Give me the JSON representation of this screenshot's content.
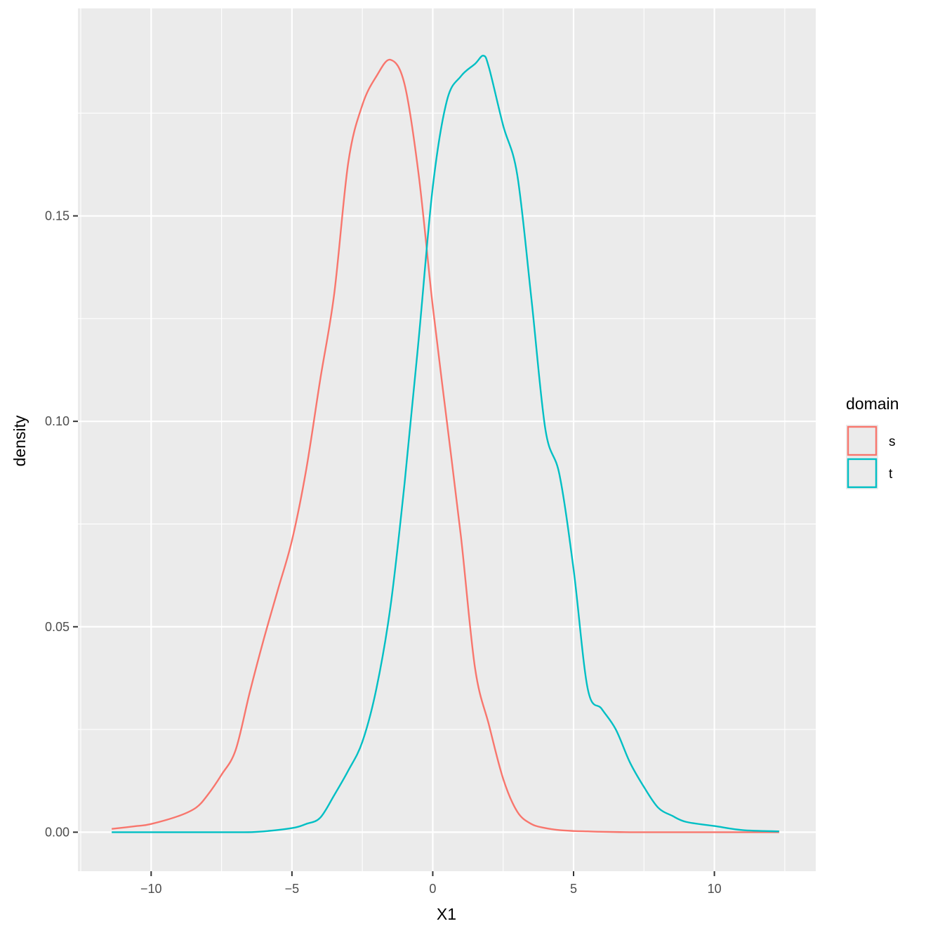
{
  "chart_data": {
    "type": "line",
    "title": "",
    "xlabel": "X1",
    "ylabel": "density",
    "xlim": [
      -12.6,
      13.6
    ],
    "ylim": [
      -0.0095,
      0.2005
    ],
    "x_ticks": [
      -10,
      -5,
      0,
      5,
      10
    ],
    "x_tick_labels": [
      "−10",
      "−5",
      "0",
      "5",
      "10"
    ],
    "y_ticks": [
      0.0,
      0.05,
      0.1,
      0.15
    ],
    "y_tick_labels": [
      "0.00",
      "0.05",
      "0.10",
      "0.15"
    ],
    "grid": true,
    "legend": {
      "title": "domain",
      "position": "right"
    },
    "series": [
      {
        "name": "s",
        "color": "#F8766D",
        "x": [
          -11.4,
          -10.5,
          -10,
          -9,
          -8.4,
          -8,
          -7.5,
          -7,
          -6.5,
          -6,
          -5.5,
          -5,
          -4.5,
          -4,
          -3.5,
          -3,
          -2.5,
          -2,
          -1.5,
          -1,
          -0.5,
          0,
          0.5,
          1,
          1.5,
          2,
          2.5,
          3,
          3.5,
          4,
          4.5,
          5,
          5.5,
          6,
          7,
          8,
          9,
          10,
          11,
          12.3
        ],
        "y": [
          0.0008,
          0.0015,
          0.002,
          0.004,
          0.006,
          0.009,
          0.014,
          0.02,
          0.034,
          0.047,
          0.059,
          0.071,
          0.088,
          0.11,
          0.131,
          0.163,
          0.177,
          0.184,
          0.188,
          0.182,
          0.16,
          0.128,
          0.1,
          0.072,
          0.04,
          0.026,
          0.013,
          0.005,
          0.002,
          0.001,
          0.0005,
          0.0003,
          0.0002,
          0.0001,
          0.0,
          0.0,
          0.0,
          0.0,
          0.0,
          0.0
        ]
      },
      {
        "name": "t",
        "color": "#00BFC4",
        "x": [
          -11.4,
          -10,
          -9,
          -8,
          -7,
          -6.2,
          -5,
          -4.5,
          -4,
          -3.5,
          -3,
          -2.5,
          -2,
          -1.5,
          -1,
          -0.5,
          0,
          0.5,
          1,
          1.5,
          1.8,
          2,
          2.5,
          3,
          3.5,
          4,
          4.5,
          5,
          5.5,
          6,
          6.5,
          7,
          7.5,
          8,
          8.5,
          9,
          10,
          11,
          12.3
        ],
        "y": [
          0.0,
          0.0,
          0.0,
          0.0,
          0.0,
          0.0001,
          0.001,
          0.002,
          0.0035,
          0.009,
          0.015,
          0.022,
          0.035,
          0.055,
          0.085,
          0.12,
          0.157,
          0.178,
          0.184,
          0.187,
          0.189,
          0.186,
          0.172,
          0.16,
          0.13,
          0.098,
          0.087,
          0.064,
          0.035,
          0.03,
          0.025,
          0.017,
          0.011,
          0.006,
          0.004,
          0.0025,
          0.0015,
          0.0005,
          0.0002
        ]
      }
    ]
  }
}
